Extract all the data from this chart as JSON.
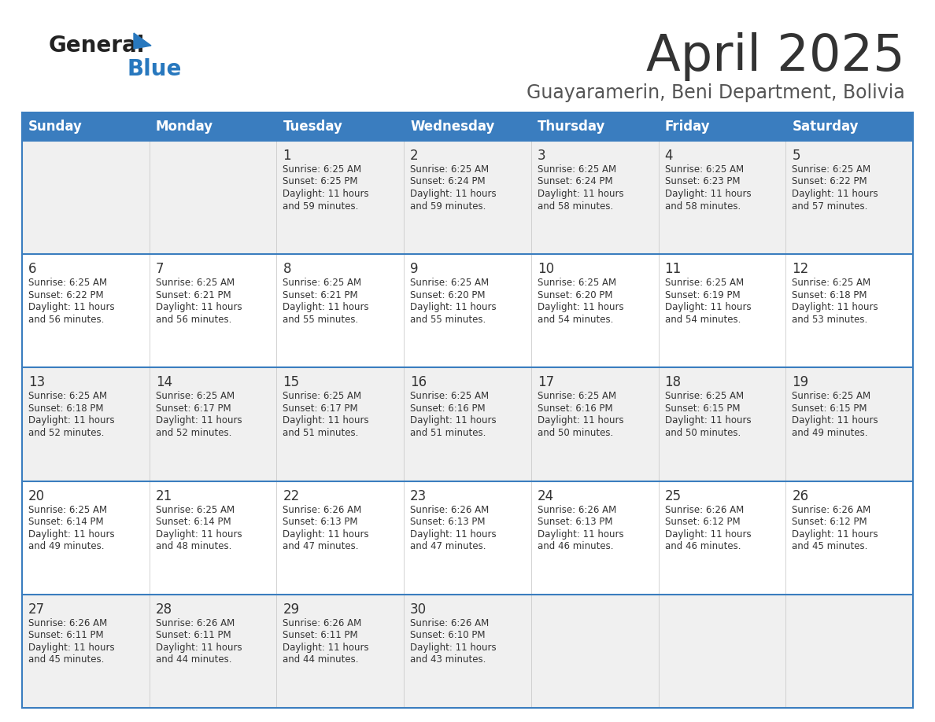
{
  "title": "April 2025",
  "subtitle": "Guayaramerin, Beni Department, Bolivia",
  "header_bg_color": "#3a7dbf",
  "header_text_color": "#ffffff",
  "day_headers": [
    "Sunday",
    "Monday",
    "Tuesday",
    "Wednesday",
    "Thursday",
    "Friday",
    "Saturday"
  ],
  "row_bg_even": "#f0f0f0",
  "row_bg_odd": "#ffffff",
  "cell_text_color": "#333333",
  "title_color": "#333333",
  "subtitle_color": "#555555",
  "divider_color": "#3a7dbf",
  "logo_general_color": "#222222",
  "logo_blue_color": "#2878be",
  "days": [
    {
      "day": 1,
      "col": 2,
      "row": 0,
      "sunrise": "6:25 AM",
      "sunset": "6:25 PM",
      "daylight_hours": 11,
      "daylight_minutes": 59
    },
    {
      "day": 2,
      "col": 3,
      "row": 0,
      "sunrise": "6:25 AM",
      "sunset": "6:24 PM",
      "daylight_hours": 11,
      "daylight_minutes": 59
    },
    {
      "day": 3,
      "col": 4,
      "row": 0,
      "sunrise": "6:25 AM",
      "sunset": "6:24 PM",
      "daylight_hours": 11,
      "daylight_minutes": 58
    },
    {
      "day": 4,
      "col": 5,
      "row": 0,
      "sunrise": "6:25 AM",
      "sunset": "6:23 PM",
      "daylight_hours": 11,
      "daylight_minutes": 58
    },
    {
      "day": 5,
      "col": 6,
      "row": 0,
      "sunrise": "6:25 AM",
      "sunset": "6:22 PM",
      "daylight_hours": 11,
      "daylight_minutes": 57
    },
    {
      "day": 6,
      "col": 0,
      "row": 1,
      "sunrise": "6:25 AM",
      "sunset": "6:22 PM",
      "daylight_hours": 11,
      "daylight_minutes": 56
    },
    {
      "day": 7,
      "col": 1,
      "row": 1,
      "sunrise": "6:25 AM",
      "sunset": "6:21 PM",
      "daylight_hours": 11,
      "daylight_minutes": 56
    },
    {
      "day": 8,
      "col": 2,
      "row": 1,
      "sunrise": "6:25 AM",
      "sunset": "6:21 PM",
      "daylight_hours": 11,
      "daylight_minutes": 55
    },
    {
      "day": 9,
      "col": 3,
      "row": 1,
      "sunrise": "6:25 AM",
      "sunset": "6:20 PM",
      "daylight_hours": 11,
      "daylight_minutes": 55
    },
    {
      "day": 10,
      "col": 4,
      "row": 1,
      "sunrise": "6:25 AM",
      "sunset": "6:20 PM",
      "daylight_hours": 11,
      "daylight_minutes": 54
    },
    {
      "day": 11,
      "col": 5,
      "row": 1,
      "sunrise": "6:25 AM",
      "sunset": "6:19 PM",
      "daylight_hours": 11,
      "daylight_minutes": 54
    },
    {
      "day": 12,
      "col": 6,
      "row": 1,
      "sunrise": "6:25 AM",
      "sunset": "6:18 PM",
      "daylight_hours": 11,
      "daylight_minutes": 53
    },
    {
      "day": 13,
      "col": 0,
      "row": 2,
      "sunrise": "6:25 AM",
      "sunset": "6:18 PM",
      "daylight_hours": 11,
      "daylight_minutes": 52
    },
    {
      "day": 14,
      "col": 1,
      "row": 2,
      "sunrise": "6:25 AM",
      "sunset": "6:17 PM",
      "daylight_hours": 11,
      "daylight_minutes": 52
    },
    {
      "day": 15,
      "col": 2,
      "row": 2,
      "sunrise": "6:25 AM",
      "sunset": "6:17 PM",
      "daylight_hours": 11,
      "daylight_minutes": 51
    },
    {
      "day": 16,
      "col": 3,
      "row": 2,
      "sunrise": "6:25 AM",
      "sunset": "6:16 PM",
      "daylight_hours": 11,
      "daylight_minutes": 51
    },
    {
      "day": 17,
      "col": 4,
      "row": 2,
      "sunrise": "6:25 AM",
      "sunset": "6:16 PM",
      "daylight_hours": 11,
      "daylight_minutes": 50
    },
    {
      "day": 18,
      "col": 5,
      "row": 2,
      "sunrise": "6:25 AM",
      "sunset": "6:15 PM",
      "daylight_hours": 11,
      "daylight_minutes": 50
    },
    {
      "day": 19,
      "col": 6,
      "row": 2,
      "sunrise": "6:25 AM",
      "sunset": "6:15 PM",
      "daylight_hours": 11,
      "daylight_minutes": 49
    },
    {
      "day": 20,
      "col": 0,
      "row": 3,
      "sunrise": "6:25 AM",
      "sunset": "6:14 PM",
      "daylight_hours": 11,
      "daylight_minutes": 49
    },
    {
      "day": 21,
      "col": 1,
      "row": 3,
      "sunrise": "6:25 AM",
      "sunset": "6:14 PM",
      "daylight_hours": 11,
      "daylight_minutes": 48
    },
    {
      "day": 22,
      "col": 2,
      "row": 3,
      "sunrise": "6:26 AM",
      "sunset": "6:13 PM",
      "daylight_hours": 11,
      "daylight_minutes": 47
    },
    {
      "day": 23,
      "col": 3,
      "row": 3,
      "sunrise": "6:26 AM",
      "sunset": "6:13 PM",
      "daylight_hours": 11,
      "daylight_minutes": 47
    },
    {
      "day": 24,
      "col": 4,
      "row": 3,
      "sunrise": "6:26 AM",
      "sunset": "6:13 PM",
      "daylight_hours": 11,
      "daylight_minutes": 46
    },
    {
      "day": 25,
      "col": 5,
      "row": 3,
      "sunrise": "6:26 AM",
      "sunset": "6:12 PM",
      "daylight_hours": 11,
      "daylight_minutes": 46
    },
    {
      "day": 26,
      "col": 6,
      "row": 3,
      "sunrise": "6:26 AM",
      "sunset": "6:12 PM",
      "daylight_hours": 11,
      "daylight_minutes": 45
    },
    {
      "day": 27,
      "col": 0,
      "row": 4,
      "sunrise": "6:26 AM",
      "sunset": "6:11 PM",
      "daylight_hours": 11,
      "daylight_minutes": 45
    },
    {
      "day": 28,
      "col": 1,
      "row": 4,
      "sunrise": "6:26 AM",
      "sunset": "6:11 PM",
      "daylight_hours": 11,
      "daylight_minutes": 44
    },
    {
      "day": 29,
      "col": 2,
      "row": 4,
      "sunrise": "6:26 AM",
      "sunset": "6:11 PM",
      "daylight_hours": 11,
      "daylight_minutes": 44
    },
    {
      "day": 30,
      "col": 3,
      "row": 4,
      "sunrise": "6:26 AM",
      "sunset": "6:10 PM",
      "daylight_hours": 11,
      "daylight_minutes": 43
    }
  ]
}
